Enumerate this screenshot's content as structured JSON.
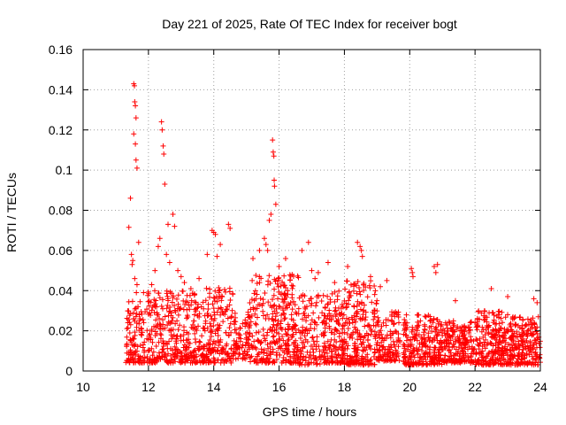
{
  "chart_data": {
    "type": "scatter",
    "title": "Day 221 of 2025, Rate Of TEC Index for receiver bogt",
    "xlabel": "GPS time / hours",
    "ylabel": "ROTI / TECUs",
    "xlim": [
      10,
      24
    ],
    "ylim": [
      0,
      0.16
    ],
    "x_ticks": [
      10,
      12,
      14,
      16,
      18,
      20,
      22,
      24
    ],
    "x_tick_labels": [
      "10",
      "12",
      "14",
      "16",
      "18",
      "20",
      "22",
      "24"
    ],
    "y_ticks": [
      0,
      0.02,
      0.04,
      0.06,
      0.08,
      0.1,
      0.12,
      0.14,
      0.16
    ],
    "y_tick_labels": [
      "0",
      "0.02",
      "0.04",
      "0.06",
      "0.08",
      "0.1",
      "0.12",
      "0.14",
      "0.16"
    ],
    "grid": true,
    "marker": "+",
    "series_color": "#ff0000",
    "series": [
      {
        "name": "ROTI",
        "x": [
          11.4,
          11.48,
          11.52,
          11.55,
          11.57,
          11.58,
          11.6,
          11.62,
          11.65,
          11.7,
          11.45,
          11.55,
          11.6,
          11.62,
          11.65,
          11.68,
          11.72,
          11.5,
          11.58,
          11.63,
          12.4,
          12.42,
          12.45,
          12.47,
          12.5,
          12.6,
          12.75,
          12.8,
          12.3,
          12.55,
          12.35,
          12.65,
          12.9,
          13.1,
          13.3,
          13.55,
          13.8,
          14.0,
          14.1,
          14.2,
          14.45,
          14.5,
          13.95,
          14.05,
          15.55,
          15.6,
          15.65,
          15.8,
          15.82,
          15.84,
          15.85,
          15.86,
          15.75,
          15.7,
          15.9,
          16.0,
          16.2,
          16.4,
          16.7,
          16.9,
          17.2,
          17.5,
          17.7,
          18.1,
          18.4,
          18.48,
          18.52,
          18.55,
          18.8,
          19.1,
          19.3,
          20.05,
          20.08,
          20.1,
          20.75,
          20.8,
          20.85,
          21.4,
          22.5,
          23.0,
          23.8,
          23.9,
          15.4,
          15.2,
          17.0,
          17.1,
          12.2,
          12.1,
          11.85,
          13.0
        ],
        "y": [
          0.0715,
          0.058,
          0.055,
          0.143,
          0.142,
          0.134,
          0.132,
          0.126,
          0.101,
          0.064,
          0.086,
          0.118,
          0.113,
          0.105,
          0.043,
          0.032,
          0.028,
          0.053,
          0.046,
          0.039,
          0.124,
          0.12,
          0.112,
          0.108,
          0.093,
          0.073,
          0.078,
          0.072,
          0.062,
          0.058,
          0.066,
          0.054,
          0.05,
          0.044,
          0.041,
          0.046,
          0.058,
          0.069,
          0.057,
          0.063,
          0.073,
          0.071,
          0.07,
          0.068,
          0.066,
          0.063,
          0.06,
          0.115,
          0.109,
          0.107,
          0.095,
          0.092,
          0.078,
          0.075,
          0.083,
          0.052,
          0.056,
          0.048,
          0.06,
          0.064,
          0.049,
          0.054,
          0.044,
          0.052,
          0.064,
          0.062,
          0.06,
          0.057,
          0.047,
          0.042,
          0.045,
          0.051,
          0.049,
          0.047,
          0.052,
          0.049,
          0.053,
          0.035,
          0.041,
          0.037,
          0.036,
          0.034,
          0.06,
          0.056,
          0.05,
          0.046,
          0.05,
          0.043,
          0.039,
          0.047
        ]
      }
    ],
    "density_bands": [
      {
        "x0": 11.3,
        "x1": 11.9,
        "y_low": 0.004,
        "y_high": 0.035,
        "count": 110
      },
      {
        "x0": 11.95,
        "x1": 13.2,
        "y_low": 0.004,
        "y_high": 0.04,
        "count": 260
      },
      {
        "x0": 13.2,
        "x1": 14.6,
        "y_low": 0.004,
        "y_high": 0.042,
        "count": 280
      },
      {
        "x0": 14.6,
        "x1": 15.1,
        "y_low": 0.006,
        "y_high": 0.03,
        "count": 80
      },
      {
        "x0": 15.1,
        "x1": 16.6,
        "y_low": 0.004,
        "y_high": 0.048,
        "count": 320
      },
      {
        "x0": 16.6,
        "x1": 17.3,
        "y_low": 0.003,
        "y_high": 0.038,
        "count": 110
      },
      {
        "x0": 17.3,
        "x1": 18.0,
        "y_low": 0.004,
        "y_high": 0.04,
        "count": 160
      },
      {
        "x0": 18.0,
        "x1": 19.0,
        "y_low": 0.003,
        "y_high": 0.045,
        "count": 230
      },
      {
        "x0": 19.0,
        "x1": 19.7,
        "y_low": 0.005,
        "y_high": 0.03,
        "count": 120
      },
      {
        "x0": 19.8,
        "x1": 21.0,
        "y_low": 0.003,
        "y_high": 0.028,
        "count": 260
      },
      {
        "x0": 21.0,
        "x1": 22.0,
        "y_low": 0.004,
        "y_high": 0.025,
        "count": 200
      },
      {
        "x0": 22.0,
        "x1": 23.0,
        "y_low": 0.003,
        "y_high": 0.03,
        "count": 230
      },
      {
        "x0": 23.0,
        "x1": 24.0,
        "y_low": 0.003,
        "y_high": 0.027,
        "count": 220
      }
    ]
  }
}
